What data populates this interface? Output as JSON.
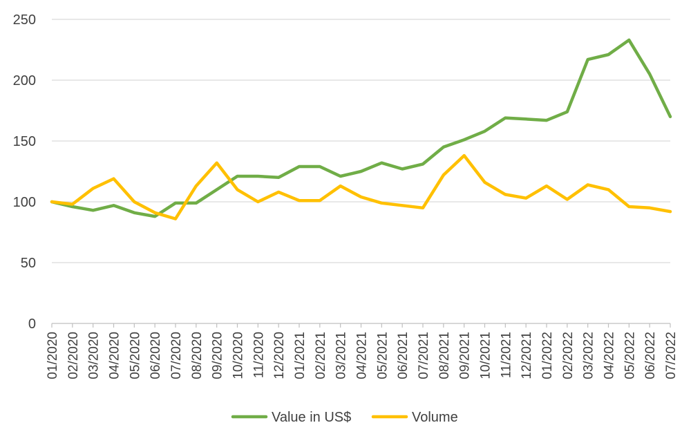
{
  "chart_data": {
    "type": "line",
    "title": "",
    "xlabel": "",
    "ylabel": "",
    "ylim": [
      0,
      250
    ],
    "yticks": [
      "0",
      "50",
      "100",
      "150",
      "200",
      "250"
    ],
    "grid": true,
    "legend_position": "bottom",
    "categories": [
      "01/2020",
      "02/2020",
      "03/2020",
      "04/2020",
      "05/2020",
      "06/2020",
      "07/2020",
      "08/2020",
      "09/2020",
      "10/2020",
      "11/2020",
      "12/2020",
      "01/2021",
      "02/2021",
      "03/2021",
      "04/2021",
      "05/2021",
      "06/2021",
      "07/2021",
      "08/2021",
      "09/2021",
      "10/2021",
      "11/2021",
      "12/2021",
      "01/2022",
      "02/2022",
      "03/2022",
      "04/2022",
      "05/2022",
      "06/2022",
      "07/2022"
    ],
    "series": [
      {
        "name": "Value in US$",
        "color": "#70AD47",
        "values": [
          100,
          96,
          93,
          97,
          91,
          88,
          99,
          99,
          110,
          121,
          121,
          120,
          129,
          129,
          121,
          125,
          132,
          127,
          131,
          145,
          151,
          158,
          169,
          168,
          167,
          174,
          217,
          221,
          233,
          205,
          170
        ]
      },
      {
        "name": "Volume",
        "color": "#FFC000",
        "values": [
          100,
          98,
          111,
          119,
          100,
          91,
          86,
          113,
          132,
          110,
          100,
          108,
          101,
          101,
          113,
          104,
          99,
          97,
          95,
          122,
          138,
          116,
          106,
          103,
          113,
          102,
          114,
          110,
          96,
          95,
          92
        ]
      }
    ]
  }
}
